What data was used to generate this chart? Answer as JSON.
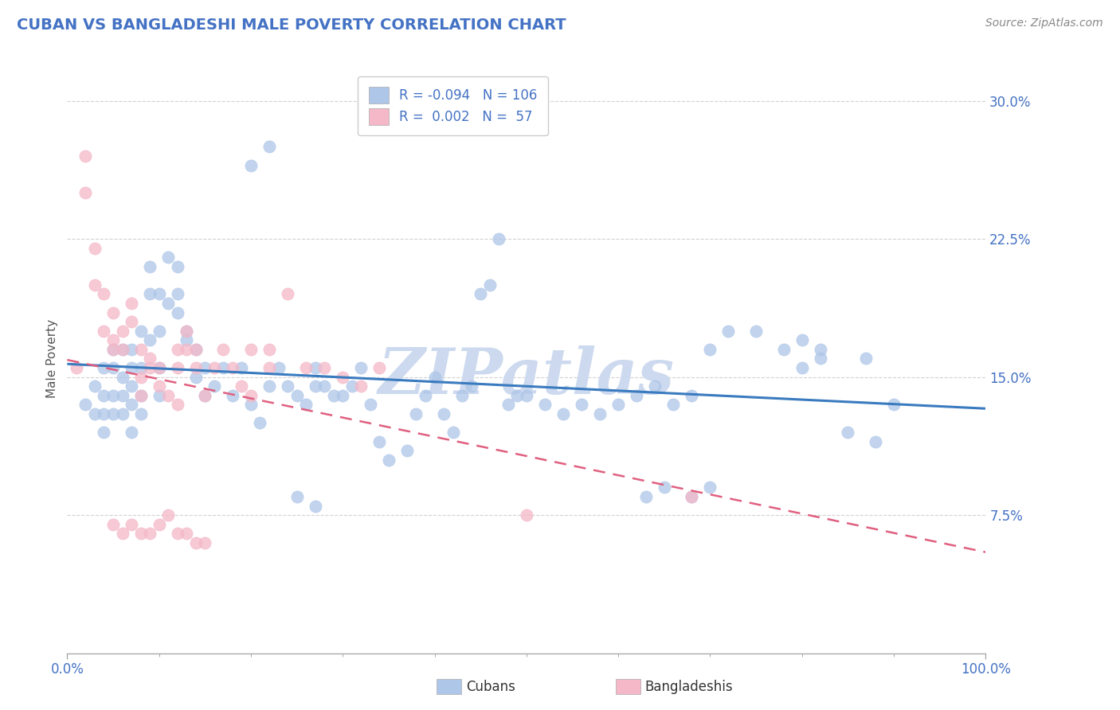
{
  "title": "CUBAN VS BANGLADESHI MALE POVERTY CORRELATION CHART",
  "source_text": "Source: ZipAtlas.com",
  "ylabel": "Male Poverty",
  "xlim": [
    0.0,
    1.0
  ],
  "ylim": [
    0.0,
    0.32
  ],
  "xtick_positions": [
    0.0,
    1.0
  ],
  "xtick_labels": [
    "0.0%",
    "100.0%"
  ],
  "yticks": [
    0.075,
    0.15,
    0.225,
    0.3
  ],
  "ytick_labels": [
    "7.5%",
    "15.0%",
    "22.5%",
    "30.0%"
  ],
  "cuban_color": "#aec6e8",
  "bangladeshi_color": "#f4b8c8",
  "cuban_line_color": "#3a7bbf",
  "bangladeshi_line_color": "#e06080",
  "title_color": "#4472c4",
  "axis_color": "#4472c4",
  "source_color": "#888888",
  "watermark_color": "#ccd9ee",
  "cuban_R": -0.094,
  "cuban_N": 106,
  "bangladeshi_R": 0.002,
  "bangladeshi_N": 57,
  "cuban_x": [
    0.02,
    0.03,
    0.03,
    0.04,
    0.04,
    0.04,
    0.04,
    0.05,
    0.05,
    0.05,
    0.05,
    0.06,
    0.06,
    0.06,
    0.06,
    0.07,
    0.07,
    0.07,
    0.07,
    0.07,
    0.08,
    0.08,
    0.08,
    0.08,
    0.09,
    0.09,
    0.09,
    0.1,
    0.1,
    0.1,
    0.1,
    0.11,
    0.11,
    0.12,
    0.12,
    0.12,
    0.13,
    0.13,
    0.14,
    0.14,
    0.15,
    0.15,
    0.16,
    0.17,
    0.18,
    0.19,
    0.2,
    0.21,
    0.22,
    0.23,
    0.24,
    0.25,
    0.26,
    0.27,
    0.27,
    0.28,
    0.29,
    0.3,
    0.31,
    0.32,
    0.33,
    0.34,
    0.35,
    0.37,
    0.38,
    0.39,
    0.4,
    0.41,
    0.42,
    0.43,
    0.44,
    0.45,
    0.46,
    0.47,
    0.48,
    0.49,
    0.5,
    0.52,
    0.54,
    0.56,
    0.58,
    0.6,
    0.62,
    0.64,
    0.66,
    0.68,
    0.7,
    0.72,
    0.75,
    0.78,
    0.8,
    0.82,
    0.85,
    0.88,
    0.8,
    0.82,
    0.87,
    0.9,
    0.63,
    0.65,
    0.68,
    0.7,
    0.2,
    0.22,
    0.25,
    0.27
  ],
  "cuban_y": [
    0.135,
    0.13,
    0.145,
    0.12,
    0.13,
    0.14,
    0.155,
    0.13,
    0.14,
    0.155,
    0.165,
    0.13,
    0.14,
    0.15,
    0.165,
    0.12,
    0.135,
    0.145,
    0.155,
    0.165,
    0.13,
    0.14,
    0.155,
    0.175,
    0.17,
    0.195,
    0.21,
    0.14,
    0.155,
    0.175,
    0.195,
    0.19,
    0.215,
    0.185,
    0.195,
    0.21,
    0.17,
    0.175,
    0.15,
    0.165,
    0.14,
    0.155,
    0.145,
    0.155,
    0.14,
    0.155,
    0.135,
    0.125,
    0.145,
    0.155,
    0.145,
    0.14,
    0.135,
    0.145,
    0.155,
    0.145,
    0.14,
    0.14,
    0.145,
    0.155,
    0.135,
    0.115,
    0.105,
    0.11,
    0.13,
    0.14,
    0.15,
    0.13,
    0.12,
    0.14,
    0.145,
    0.195,
    0.2,
    0.225,
    0.135,
    0.14,
    0.14,
    0.135,
    0.13,
    0.135,
    0.13,
    0.135,
    0.14,
    0.145,
    0.135,
    0.14,
    0.165,
    0.175,
    0.175,
    0.165,
    0.155,
    0.165,
    0.12,
    0.115,
    0.17,
    0.16,
    0.16,
    0.135,
    0.085,
    0.09,
    0.085,
    0.09,
    0.265,
    0.275,
    0.085,
    0.08
  ],
  "bangladeshi_x": [
    0.01,
    0.02,
    0.02,
    0.03,
    0.03,
    0.04,
    0.04,
    0.05,
    0.05,
    0.05,
    0.06,
    0.06,
    0.07,
    0.07,
    0.08,
    0.08,
    0.08,
    0.09,
    0.09,
    0.1,
    0.1,
    0.11,
    0.12,
    0.12,
    0.12,
    0.13,
    0.13,
    0.14,
    0.14,
    0.15,
    0.16,
    0.17,
    0.18,
    0.19,
    0.2,
    0.22,
    0.24,
    0.26,
    0.28,
    0.3,
    0.32,
    0.34,
    0.05,
    0.06,
    0.07,
    0.08,
    0.09,
    0.1,
    0.11,
    0.12,
    0.13,
    0.14,
    0.15,
    0.5,
    0.68,
    0.2,
    0.22
  ],
  "bangladeshi_y": [
    0.155,
    0.27,
    0.25,
    0.22,
    0.2,
    0.175,
    0.195,
    0.17,
    0.185,
    0.165,
    0.165,
    0.175,
    0.18,
    0.19,
    0.14,
    0.15,
    0.165,
    0.16,
    0.155,
    0.155,
    0.145,
    0.14,
    0.135,
    0.155,
    0.165,
    0.165,
    0.175,
    0.155,
    0.165,
    0.14,
    0.155,
    0.165,
    0.155,
    0.145,
    0.14,
    0.165,
    0.195,
    0.155,
    0.155,
    0.15,
    0.145,
    0.155,
    0.07,
    0.065,
    0.07,
    0.065,
    0.065,
    0.07,
    0.075,
    0.065,
    0.065,
    0.06,
    0.06,
    0.075,
    0.085,
    0.165,
    0.155
  ]
}
